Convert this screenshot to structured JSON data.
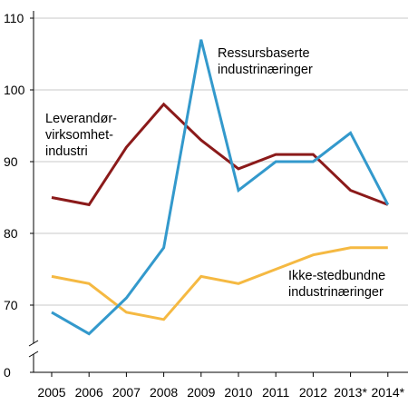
{
  "chart_data": {
    "type": "line",
    "title": "",
    "xlabel": "",
    "ylabel": "",
    "categories": [
      "2005",
      "2006",
      "2007",
      "2008",
      "2009",
      "2010",
      "2011",
      "2012",
      "2013*",
      "2014*"
    ],
    "y_ticks": [
      "0",
      "70",
      "80",
      "90",
      "100",
      "110"
    ],
    "ylim": [
      65,
      110
    ],
    "y_axis_break": true,
    "grid": "horizontal",
    "legend": "inline labels",
    "series": [
      {
        "name_lines": [
          "Leverandør-",
          "virksomhet-",
          "industri"
        ],
        "color": "#8b1a1a",
        "values": [
          85,
          84,
          92,
          98,
          93,
          89,
          91,
          91,
          86,
          84
        ]
      },
      {
        "name_lines": [
          "Ressursbaserte",
          "industrinæringer"
        ],
        "color": "#3399cc",
        "values": [
          69,
          66,
          71,
          78,
          107,
          86,
          90,
          90,
          94,
          84
        ]
      },
      {
        "name_lines": [
          "Ikke-stedbundne",
          "industrinæringer"
        ],
        "color": "#f5b942",
        "values": [
          74,
          73,
          69,
          68,
          74,
          73,
          75,
          77,
          78,
          78
        ]
      }
    ]
  }
}
